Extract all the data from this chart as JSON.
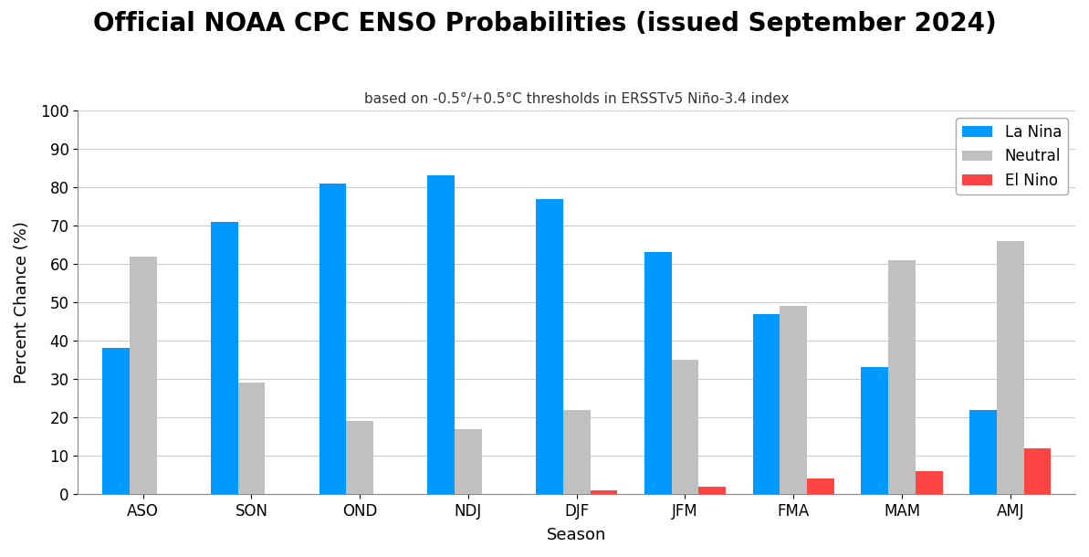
{
  "title": "Official NOAA CPC ENSO Probabilities (issued September 2024)",
  "subtitle": "based on -0.5°/+0.5°C thresholds in ERSSTv5 Niño-3.4 index",
  "xlabel": "Season",
  "ylabel": "Percent Chance (%)",
  "seasons": [
    "ASO",
    "SON",
    "OND",
    "NDJ",
    "DJF",
    "JFM",
    "FMA",
    "MAM",
    "AMJ"
  ],
  "la_nina": [
    38,
    71,
    81,
    83,
    77,
    63,
    47,
    33,
    22
  ],
  "neutral": [
    62,
    29,
    19,
    17,
    22,
    35,
    49,
    61,
    66
  ],
  "el_nino": [
    0,
    0,
    0,
    0,
    1,
    2,
    4,
    6,
    12
  ],
  "la_nina_color": "#0099ff",
  "neutral_color": "#c0c0c0",
  "el_nino_color": "#ff4444",
  "ylim": [
    0,
    100
  ],
  "yticks": [
    0,
    10,
    20,
    30,
    40,
    50,
    60,
    70,
    80,
    90,
    100
  ],
  "legend_labels": [
    "La Nina",
    "Neutral",
    "El Nino"
  ],
  "title_fontsize": 20,
  "subtitle_fontsize": 11,
  "axis_label_fontsize": 13,
  "tick_fontsize": 12,
  "legend_fontsize": 12,
  "bar_width": 0.25,
  "grid_color": "#cccccc",
  "background_color": "#ffffff"
}
